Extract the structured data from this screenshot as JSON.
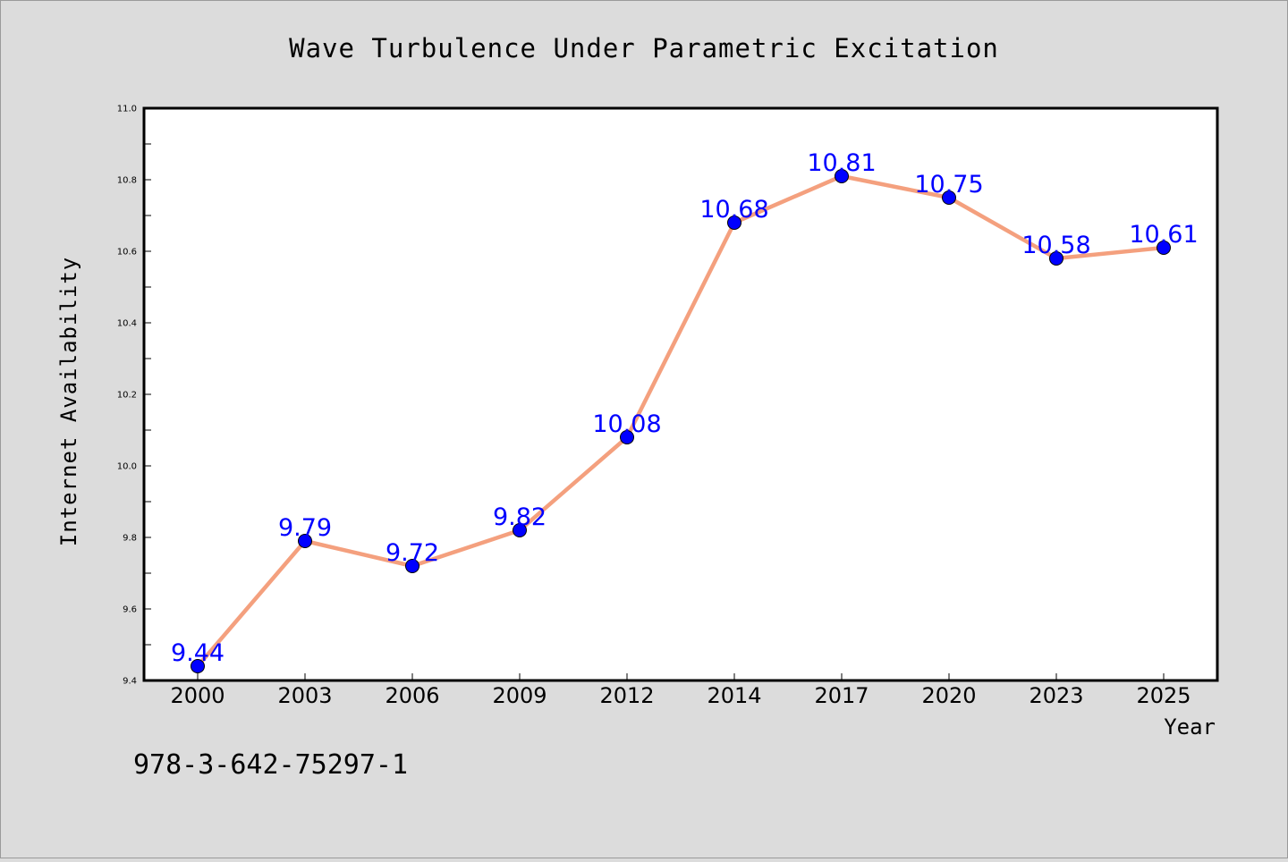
{
  "chart_data": {
    "type": "line",
    "title": "Wave Turbulence Under Parametric Excitation",
    "xlabel": "Year",
    "ylabel": "Internet Availability",
    "categories": [
      "2000",
      "2003",
      "2006",
      "2009",
      "2012",
      "2014",
      "2017",
      "2020",
      "2023",
      "2025"
    ],
    "values": [
      9.44,
      9.79,
      9.72,
      9.82,
      10.08,
      10.68,
      10.81,
      10.75,
      10.58,
      10.61
    ],
    "data_labels": [
      "9.44",
      "9.79",
      "9.72",
      "9.82",
      "10.08",
      "10.68",
      "10.81",
      "10.75",
      "10.58",
      "10.61"
    ],
    "ylim": [
      9.4,
      11.0
    ],
    "yticks": [
      "9.4",
      "9.6",
      "9.8",
      "10.0",
      "10.2",
      "10.4",
      "10.6",
      "10.8",
      "11.0"
    ],
    "grid": false,
    "legend": "none",
    "colors": {
      "line": "#f4a07e",
      "marker": "#0000ff",
      "marker_edge": "#000000",
      "data_label": "#0000ff",
      "background": "#dcdcdc",
      "plot_background": "#ffffff"
    }
  },
  "footer": {
    "isbn": "978-3-642-75297-1"
  }
}
